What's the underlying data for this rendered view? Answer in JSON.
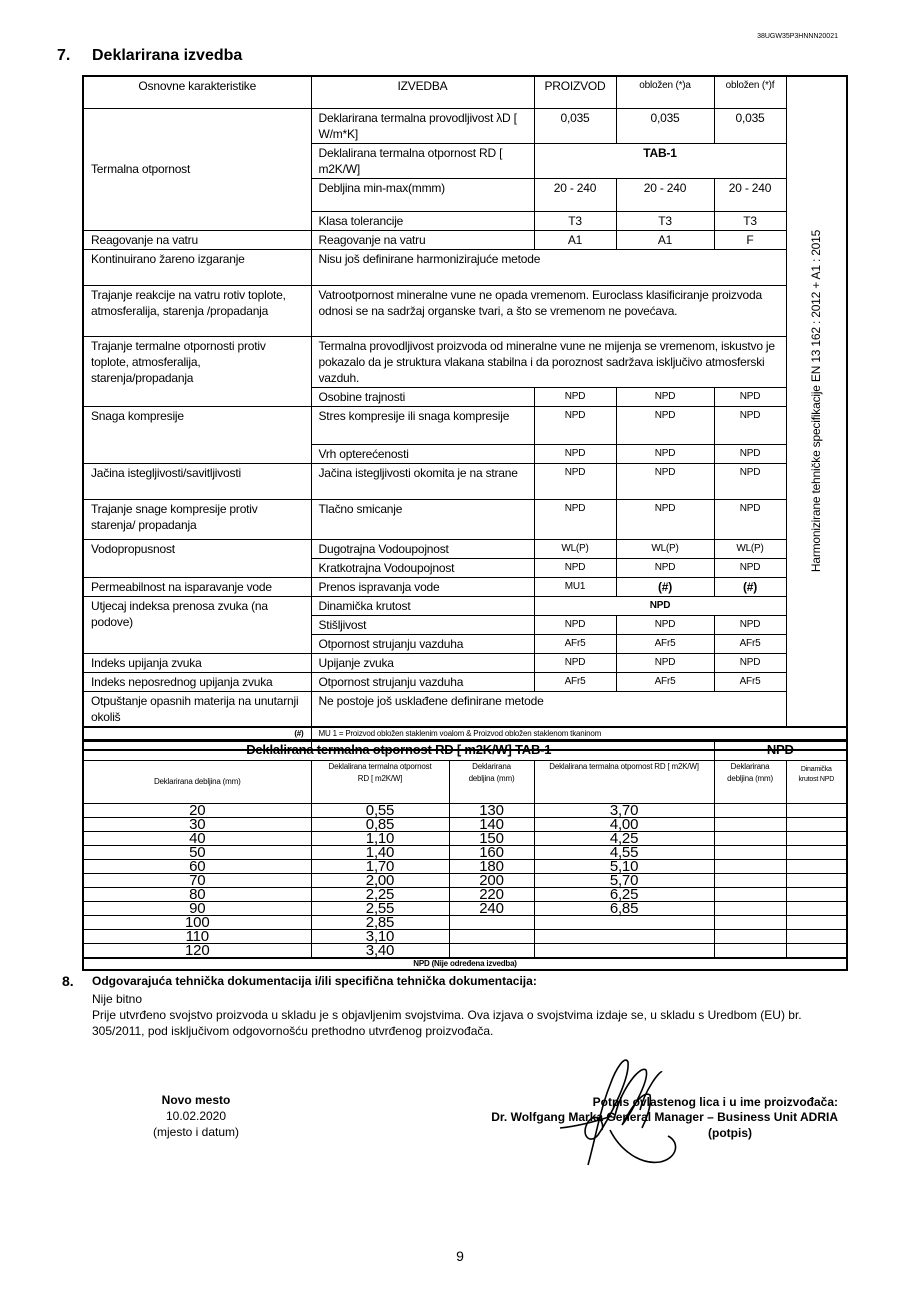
{
  "header_code": "38UGW35P3HNNN20021",
  "section7": {
    "number": "7.",
    "title": "Deklarirana izvedba"
  },
  "table": {
    "headers": [
      "Osnovne karakteristike",
      "IZVEDBA",
      "PROIZVOD",
      "obložen   (*)a",
      "obložen (*)f"
    ],
    "vertical_label": "Harmonizirane tehničke specifikacije    EN 13 162 : 2012 + A1 : 2015",
    "rows": [
      {
        "characteristic": "Termalna otpornost",
        "performance": "Deklarirana termalna provodljivost λD [ W/m*K]",
        "values": [
          "0,035",
          "0,035",
          "0,035"
        ]
      },
      {
        "performance": "Deklalirana termalna otpornost   RD [ m2K/W]",
        "value": "TAB-1"
      },
      {
        "performance": "Debljina min-max(mmm)",
        "values": [
          "20 - 240",
          "20 - 240",
          "20 - 240"
        ]
      },
      {
        "performance": "Klasa tolerancije",
        "values": [
          "T3",
          "T3",
          "T3"
        ]
      },
      {
        "characteristic": "Reagovanje na vatru",
        "performance": "Reagovanje na vatru",
        "values": [
          "A1",
          "A1",
          "F"
        ]
      },
      {
        "characteristic": "Kontinuirano žareno izgaranje",
        "text": "Nisu još definirane harmonizirajuće metode"
      },
      {
        "characteristic": "Trajanje reakcije na vatru rotiv toplote, atmosferalija, starenja  /propadanja",
        "text": "Vatrootpornost mineralne vune ne opada vremenom. Euroclass klasificiranje proizvoda odnosi se na sadržaj organske tvari, a što se vremenom ne povećava."
      },
      {
        "characteristic": "Trajanje termalne otpornosti protiv toplote, atmosferalija, starenja/propadanja",
        "text": "Termalna provodljivost proizvoda od mineralne vune ne mijenja se vremenom, iskustvo je pokazalo da je struktura vlakana stabilna i da poroznost sadržava isključivo atmosferski vazduh."
      },
      {
        "performance": "Osobine trajnosti",
        "values": [
          "NPD",
          "NPD",
          "NPD"
        ]
      },
      {
        "characteristic": "Snaga kompresije",
        "performance": "Stres kompresije ili snaga kompresije",
        "values": [
          "NPD",
          "NPD",
          "NPD"
        ]
      },
      {
        "performance": "Vrh opterećenosti",
        "values": [
          "NPD",
          "NPD",
          "NPD"
        ]
      },
      {
        "characteristic": "Jačina istegljivosti/savitljivosti",
        "performance": "Jačina istegljivosti okomita je na strane",
        "values": [
          "NPD",
          "NPD",
          "NPD"
        ]
      },
      {
        "characteristic": "Trajanje snage kompresije protiv starenja/ propadanja",
        "performance": "Tlačno smicanje",
        "values": [
          "NPD",
          "NPD",
          "NPD"
        ]
      },
      {
        "characteristic": "Vodopropusnost",
        "performance": "Dugotrajna Vodoupojnost",
        "values": [
          "WL(P)",
          "WL(P)",
          "WL(P)"
        ]
      },
      {
        "performance": "Kratkotrajna Vodoupojnost",
        "values": [
          "NPD",
          "NPD",
          "NPD"
        ]
      },
      {
        "characteristic": "Permeabilnost na isparavanje vode",
        "performance": "Prenos ispravanja vode",
        "values": [
          "MU1",
          "(#)",
          "(#)"
        ]
      },
      {
        "characteristic": "Utjecaj indeksa prenosa zvuka (na podove)",
        "performance": "Dinamička krutost",
        "value": "NPD"
      },
      {
        "performance": "Stišljivost",
        "values": [
          "NPD",
          "NPD",
          "NPD"
        ]
      },
      {
        "performance": "Otpornost strujanju vazduha",
        "values": [
          "AFr5",
          "AFr5",
          "AFr5"
        ]
      },
      {
        "characteristic": "Indeks upijanja zvuka",
        "performance": "Upijanje zvuka",
        "values": [
          "NPD",
          "NPD",
          "NPD"
        ]
      },
      {
        "characteristic": "Indeks neposrednog upijanja zvuka",
        "performance": "Otpornost strujanju vazduha",
        "values": [
          "AFr5",
          "AFr5",
          "AFr5"
        ]
      },
      {
        "characteristic": "Otpuštanje opasnih materija na unutarnji okoliš",
        "text": "Ne postoje još usklađene definirane metode"
      }
    ],
    "footnote_mark": "(#)",
    "footnote": "MU 1 =  Proizvod obložen staklenim voalom  &  Proizvod obložen staklenom tkaninom"
  },
  "tab1": {
    "title": "Deklalirana termalna otpornost   RD [ m2K/W]   TAB-1",
    "npd_title": "NPD",
    "headers": [
      "Deklarirana debljina (mm)",
      "Deklalirana termalna otpornost   RD [ m2K/W]",
      "Deklarirana debljina (mm)",
      "Deklalirana termalna otpornost   RD [ m2K/W]",
      "Deklarirana debljina (mm)",
      "Dinamička krutost NPD"
    ],
    "rows": [
      [
        "20",
        "0,55",
        "130",
        "3,70"
      ],
      [
        "30",
        "0,85",
        "140",
        "4,00"
      ],
      [
        "40",
        "1,10",
        "150",
        "4,25"
      ],
      [
        "50",
        "1,40",
        "160",
        "4,55"
      ],
      [
        "60",
        "1,70",
        "180",
        "5,10"
      ],
      [
        "70",
        "2,00",
        "200",
        "5,70"
      ],
      [
        "80",
        "2,25",
        "220",
        "6,25"
      ],
      [
        "90",
        "2,55",
        "240",
        "6,85"
      ],
      [
        "100",
        "2,85",
        "",
        ""
      ],
      [
        "110",
        "3,10",
        "",
        ""
      ],
      [
        "120",
        "3,40",
        "",
        ""
      ]
    ],
    "footer": "NPD (Nije određena izvedba)"
  },
  "section8": {
    "number": "8.",
    "title": "Odgovarajuća tehnička dokumentacija i/ili specifična tehnička dokumentacija:",
    "line1": "Nije bitno",
    "line2": "Prije utvrđeno svojstvo proizvoda u skladu je s objavljenim svojstvima. Ova izjava  o svojstvima izdaje se, u skladu s Uredbom (EU) br.",
    "line3": "305/2011, pod isključivom odgovornošću prethodno utvrđenog proizvođača."
  },
  "place": {
    "city": "Novo mesto",
    "date": "10.02.2020",
    "label": "(mjesto i datum)"
  },
  "signatory": {
    "heading": "Potpis ovlastenog lica i u ime proizvođača:",
    "name": "Dr. Wolfgang Marka  General Manager – Business Unit  ADRIA",
    "label": "(potpis)"
  },
  "page_number": "9"
}
